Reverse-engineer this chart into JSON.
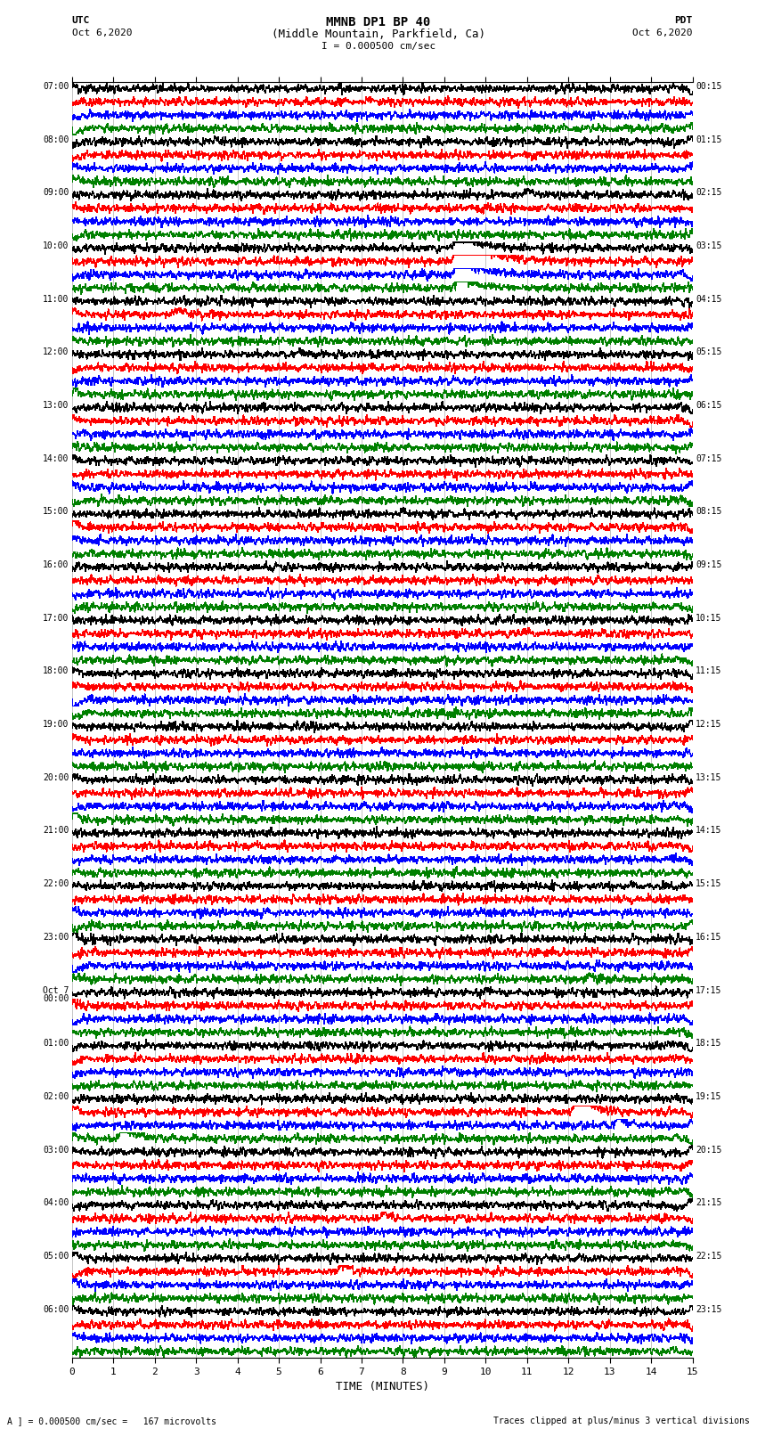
{
  "title_line1": "MMNB DP1 BP 40",
  "title_line2": "(Middle Mountain, Parkfield, Ca)",
  "scale_text": "I = 0.000500 cm/sec",
  "left_header": "UTC",
  "left_date": "Oct 6,2020",
  "right_header": "PDT",
  "right_date": "Oct 6,2020",
  "xlabel": "TIME (MINUTES)",
  "footer_left": "A ] = 0.000500 cm/sec =   167 microvolts",
  "footer_right": "Traces clipped at plus/minus 3 vertical divisions",
  "utc_labels": [
    "07:00",
    "08:00",
    "09:00",
    "10:00",
    "11:00",
    "12:00",
    "13:00",
    "14:00",
    "15:00",
    "16:00",
    "17:00",
    "18:00",
    "19:00",
    "20:00",
    "21:00",
    "22:00",
    "23:00",
    "Oct 7\n00:00",
    "01:00",
    "02:00",
    "03:00",
    "04:00",
    "05:00",
    "06:00"
  ],
  "pdt_labels": [
    "00:15",
    "01:15",
    "02:15",
    "03:15",
    "04:15",
    "05:15",
    "06:15",
    "07:15",
    "08:15",
    "09:15",
    "10:15",
    "11:15",
    "12:15",
    "13:15",
    "14:15",
    "15:15",
    "16:15",
    "17:15",
    "18:15",
    "19:15",
    "20:15",
    "21:15",
    "22:15",
    "23:15"
  ],
  "n_rows": 24,
  "n_traces_per_row": 4,
  "trace_colors": [
    "black",
    "red",
    "blue",
    "green"
  ],
  "minutes": 15,
  "background": "white",
  "grid_color": "#777777",
  "figsize": [
    8.5,
    16.13
  ],
  "dpi": 100
}
